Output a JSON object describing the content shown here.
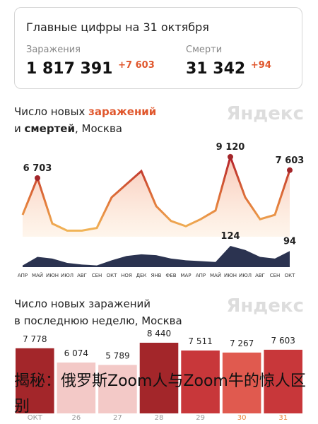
{
  "header": {
    "title": "Главные цифры на 31 октября",
    "cases_label": "Заражения",
    "cases_total": "1 817 391",
    "cases_delta": "+7 603",
    "deaths_label": "Смерти",
    "deaths_total": "31 342",
    "deaths_delta": "+94"
  },
  "chart_data": [
    {
      "type": "area",
      "title_parts": [
        "Число новых",
        "заражений",
        "и",
        "смертей",
        ", Москва"
      ],
      "logo": "Яндекс",
      "categories": [
        "АПР",
        "МАЙ",
        "ИЮН",
        "ИЮЛ",
        "АВГ",
        "СЕН",
        "ОКТ",
        "НОЯ",
        "ДЕК",
        "ЯНВ",
        "ФЕВ",
        "МАР",
        "АПР",
        "МАЙ",
        "ИЮН",
        "ИЮЛ",
        "АВГ",
        "СЕН",
        "ОКТ"
      ],
      "series": [
        {
          "name": "заражений",
          "color": "#d9532b",
          "values": [
            2500,
            6703,
            1500,
            700,
            700,
            1000,
            4500,
            6000,
            7500,
            3500,
            1800,
            1200,
            2000,
            3000,
            9120,
            4500,
            2000,
            2500,
            7603
          ],
          "value_labels": [
            null,
            "6 703",
            null,
            null,
            null,
            null,
            null,
            null,
            null,
            null,
            null,
            null,
            null,
            null,
            "9 120",
            null,
            null,
            null,
            "7 603"
          ]
        },
        {
          "name": "смертей",
          "color": "#2b3350",
          "values": [
            10,
            60,
            50,
            25,
            15,
            10,
            40,
            65,
            75,
            70,
            50,
            40,
            35,
            30,
            124,
            100,
            60,
            50,
            94
          ],
          "value_labels": [
            null,
            null,
            null,
            null,
            null,
            null,
            null,
            null,
            null,
            null,
            null,
            null,
            null,
            null,
            "124",
            null,
            null,
            null,
            "94"
          ]
        }
      ]
    },
    {
      "type": "bar",
      "title_lines": [
        "Число новых заражений",
        "в последнюю неделю, Москва"
      ],
      "logo": "Яндекс",
      "categories": [
        "ОКТ",
        "26",
        "27",
        "28",
        "29",
        "30",
        "31"
      ],
      "values": [
        7778,
        6074,
        5789,
        8440,
        7511,
        7267,
        7603
      ],
      "value_labels": [
        "7 778",
        "6 074",
        "5 789",
        "8 440",
        "7 511",
        "7 267",
        "7 603"
      ],
      "colors": [
        "#a3262a",
        "#f3c9c7",
        "#f3c9c7",
        "#a3262a",
        "#c8373a",
        "#e05a4f",
        "#c8373a"
      ],
      "label_colors": [
        "#999999",
        "#999999",
        "#999999",
        "#999999",
        "#999999",
        "#e8843a",
        "#e8843a"
      ]
    }
  ],
  "overlay_caption": "揭秘：俄罗斯Zoom人与Zoom牛的惊人区别"
}
